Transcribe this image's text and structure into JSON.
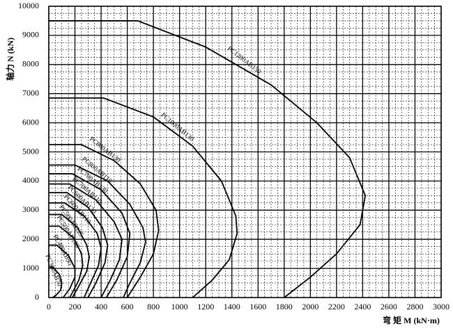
{
  "chart_data": {
    "type": "line",
    "xlabel": "弯 矩 M (kN·m)",
    "ylabel": "轴力 N (kN)",
    "xlim": [
      0,
      3000
    ],
    "ylim": [
      0,
      10000
    ],
    "xticks": [
      0,
      200,
      400,
      600,
      800,
      1000,
      1200,
      1400,
      1600,
      1800,
      2000,
      2200,
      2400,
      2600,
      2800,
      3000
    ],
    "yticks": [
      0,
      1000,
      2000,
      3000,
      4000,
      5000,
      6000,
      7000,
      8000,
      9000,
      10000
    ],
    "grid": true,
    "series": [
      {
        "name": "PC1200AB150",
        "color": "#000000",
        "x": [
          0,
          680,
          1200,
          1700,
          2050,
          2300,
          2420,
          2380,
          2200,
          2000,
          1800
        ],
        "values": [
          9500,
          9500,
          8600,
          7300,
          6000,
          4800,
          3500,
          2500,
          1500,
          700,
          0
        ]
      },
      {
        "name": "PC1000AB130",
        "color": "#000000",
        "x": [
          0,
          420,
          800,
          1100,
          1320,
          1430,
          1440,
          1380,
          1250,
          1100
        ],
        "values": [
          6850,
          6850,
          6200,
          5200,
          4000,
          2800,
          2200,
          1300,
          600,
          0
        ]
      },
      {
        "name": "PC800AB130",
        "color": "#000000",
        "x": [
          0,
          250,
          500,
          700,
          820,
          840,
          800,
          700,
          600
        ],
        "values": [
          5250,
          5250,
          4700,
          3900,
          3000,
          2300,
          1500,
          700,
          0
        ]
      },
      {
        "name": "PC800AB110",
        "color": "#000000",
        "x": [
          0,
          200,
          450,
          620,
          720,
          740,
          700,
          620,
          570
        ],
        "values": [
          4550,
          4550,
          4000,
          3200,
          2400,
          1900,
          1200,
          500,
          0
        ]
      },
      {
        "name": "PC700AB130",
        "color": "#000000",
        "x": [
          0,
          180,
          400,
          560,
          620,
          600,
          520,
          440
        ],
        "values": [
          4250,
          4250,
          3700,
          2900,
          2200,
          1400,
          600,
          0
        ]
      },
      {
        "name": "PC700AB110",
        "color": "#000000",
        "x": [
          0,
          160,
          360,
          500,
          560,
          540,
          470,
          400
        ],
        "values": [
          3900,
          3900,
          3350,
          2600,
          2000,
          1300,
          600,
          0
        ]
      },
      {
        "name": "PC600AB130",
        "color": "#000000",
        "x": [
          0,
          140,
          300,
          410,
          450,
          430,
          360,
          300
        ],
        "values": [
          3600,
          3600,
          3100,
          2400,
          1800,
          1200,
          500,
          0
        ]
      },
      {
        "name": "PC600AB110",
        "color": "#000000",
        "x": [
          0,
          120,
          270,
          370,
          400,
          380,
          320,
          270
        ],
        "values": [
          3250,
          3250,
          2800,
          2200,
          1700,
          1100,
          500,
          0
        ]
      },
      {
        "name": "PC500AB125",
        "color": "#000000",
        "x": [
          0,
          100,
          220,
          290,
          310,
          290,
          230,
          180
        ],
        "values": [
          2850,
          2850,
          2400,
          1800,
          1400,
          900,
          400,
          0
        ]
      },
      {
        "name": "PC500AB100",
        "color": "#000000",
        "x": [
          0,
          80,
          190,
          250,
          260,
          230,
          190,
          160
        ],
        "values": [
          2450,
          2450,
          2050,
          1500,
          1100,
          600,
          250,
          0
        ]
      },
      {
        "name": "PC400AB95",
        "color": "#000000",
        "x": [
          0,
          60,
          150,
          200,
          200,
          160,
          110
        ],
        "values": [
          1800,
          1800,
          1450,
          1000,
          700,
          300,
          0
        ]
      },
      {
        "name": "PC300AB70",
        "color": "#000000",
        "x": [
          0,
          30,
          80,
          100,
          90,
          60,
          30
        ],
        "values": [
          1050,
          1050,
          800,
          500,
          250,
          100,
          0
        ]
      }
    ]
  }
}
